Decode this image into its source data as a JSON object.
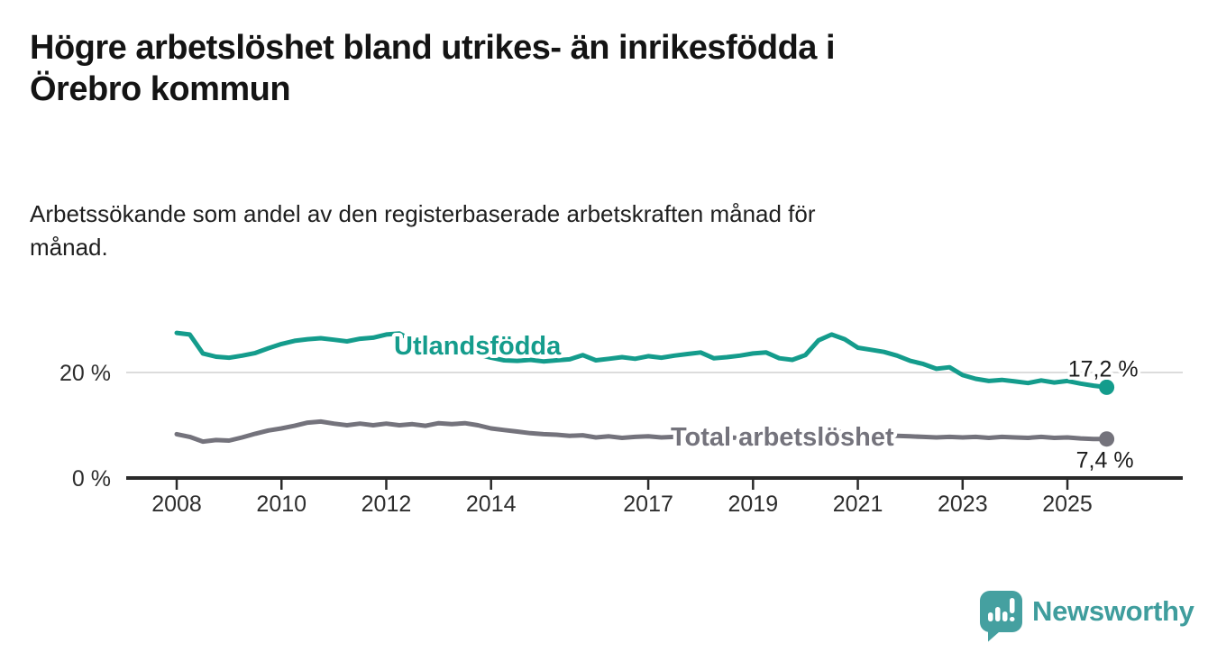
{
  "header": {
    "title_lines": [
      "Högre arbetslöshet bland utrikes- än inrikesfödda i",
      "Örebro kommun"
    ],
    "subtitle_lines": [
      "Arbetssökande som andel av den registerbaserade arbetskraften månad för",
      "månad."
    ]
  },
  "chart_data": {
    "type": "line",
    "title": "Högre arbetslöshet bland utrikes- än inrikesfödda i Örebro kommun",
    "subtitle": "Arbetssökande som andel av den registerbaserade arbetskraften månad för månad.",
    "x_start": 2008.0,
    "x_step": 0.25,
    "xlim": [
      2008.0,
      2025.75
    ],
    "ylim": [
      0,
      32
    ],
    "grid": "single-horizontal-gridline-at-20",
    "legend_position": "inline-labels-on-lines",
    "xticks": [
      2008,
      2010,
      2012,
      2014,
      2017,
      2019,
      2021,
      2023,
      2025
    ],
    "xtick_labels": [
      "2008",
      "2010",
      "2012",
      "2014",
      "2017",
      "2019",
      "2021",
      "2023",
      "2025"
    ],
    "yticks": [
      {
        "value": 0,
        "label": "0 %"
      },
      {
        "value": 20,
        "label": "20 %"
      }
    ],
    "series": [
      {
        "name": "Utlandsfödda",
        "color": "#149c8c",
        "end_value": 17.2,
        "end_label": "17,2 %",
        "values": [
          27.5,
          27.2,
          23.6,
          23.0,
          22.8,
          23.2,
          23.7,
          24.6,
          25.4,
          26.0,
          26.3,
          26.5,
          26.2,
          25.9,
          26.4,
          26.6,
          27.2,
          27.4,
          26.1,
          25.6,
          25.1,
          24.6,
          24.0,
          23.4,
          22.8,
          22.3,
          22.2,
          22.4,
          22.1,
          22.3,
          22.5,
          23.3,
          22.3,
          22.6,
          22.9,
          22.6,
          23.1,
          22.8,
          23.2,
          23.5,
          23.8,
          22.7,
          22.9,
          23.2,
          23.6,
          23.8,
          22.7,
          22.4,
          23.3,
          26.1,
          27.2,
          26.3,
          24.7,
          24.3,
          23.9,
          23.2,
          22.2,
          21.6,
          20.7,
          21.0,
          19.5,
          18.8,
          18.4,
          18.6,
          18.3,
          18.0,
          18.5,
          18.1,
          18.4,
          17.9,
          17.5,
          17.2
        ]
      },
      {
        "name": "Total arbetslöshet",
        "color": "#74737c",
        "end_value": 7.4,
        "end_label": "7,4 %",
        "values": [
          8.3,
          7.8,
          6.9,
          7.2,
          7.1,
          7.7,
          8.4,
          9.0,
          9.4,
          9.9,
          10.5,
          10.7,
          10.3,
          10.0,
          10.3,
          10.0,
          10.3,
          10.0,
          10.2,
          9.9,
          10.4,
          10.2,
          10.4,
          10.0,
          9.4,
          9.1,
          8.8,
          8.5,
          8.3,
          8.2,
          8.0,
          8.1,
          7.7,
          7.9,
          7.6,
          7.8,
          7.9,
          7.7,
          7.8,
          7.6,
          7.8,
          7.5,
          7.7,
          7.6,
          7.7,
          7.5,
          7.6,
          7.8,
          8.0,
          8.7,
          8.9,
          8.6,
          8.4,
          8.3,
          8.1,
          8.0,
          7.9,
          7.8,
          7.7,
          7.8,
          7.7,
          7.8,
          7.6,
          7.8,
          7.7,
          7.6,
          7.8,
          7.6,
          7.7,
          7.5,
          7.4,
          7.4
        ]
      }
    ]
  },
  "footer": {
    "brand": "Newsworthy",
    "logo_icon": "speech-bubble-bar-chart-exclamation",
    "brand_color": "#3f9d9d"
  }
}
